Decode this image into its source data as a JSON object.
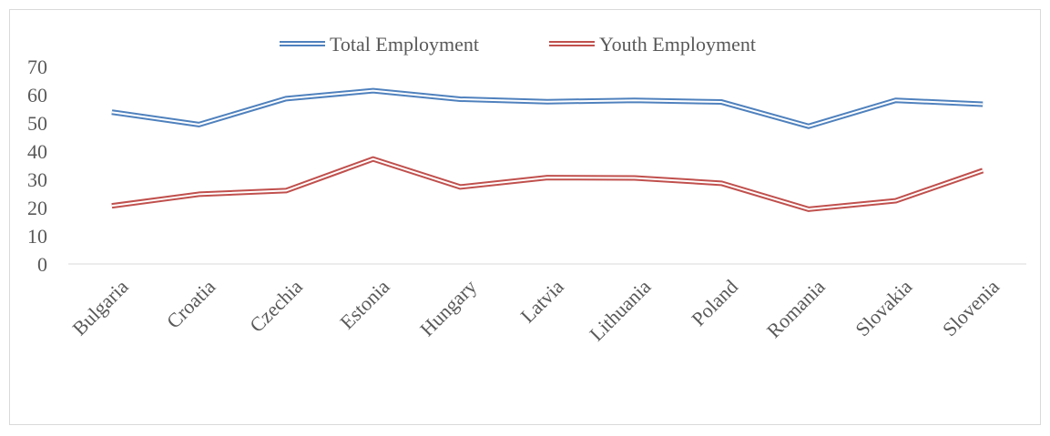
{
  "chart_data": {
    "type": "line",
    "categories": [
      "Bulgaria",
      "Croatia",
      "Czechia",
      "Estonia",
      "Hungary",
      "Latvia",
      "Lithuania",
      "Poland",
      "Romania",
      "Slovakia",
      "Slovenia"
    ],
    "series": [
      {
        "name": "Total Employment",
        "color": "#4f81bd",
        "values": [
          53.8,
          49.4,
          58.6,
          61.4,
          58.4,
          57.5,
          58.0,
          57.4,
          48.8,
          58.0,
          56.6
        ]
      },
      {
        "name": "Youth Employment",
        "color": "#c0504d",
        "values": [
          20.6,
          24.7,
          26.0,
          37.2,
          27.3,
          30.6,
          30.5,
          28.6,
          19.4,
          22.4,
          33.1
        ]
      }
    ],
    "ylim": [
      0,
      70
    ],
    "yticks": [
      0,
      10,
      20,
      30,
      40,
      50,
      60,
      70
    ],
    "gridlines": false,
    "legend_position": "top"
  }
}
